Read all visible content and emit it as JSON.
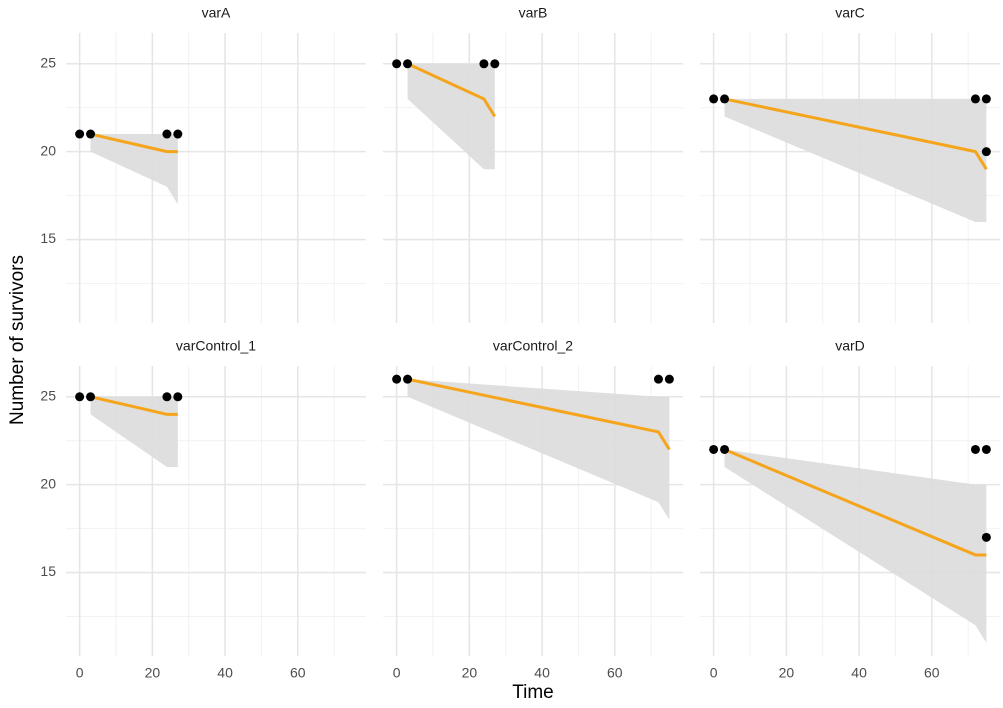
{
  "chart_data": {
    "type": "line",
    "xlabel": "Time",
    "ylabel": "Number of survivors",
    "xlim": [
      -3.75,
      78.75
    ],
    "ylim": [
      10.25,
      26.75
    ],
    "xticks": [
      0,
      20,
      40,
      60
    ],
    "yticks": [
      15,
      20,
      25
    ],
    "x_minor_ticks": [
      10,
      30,
      50,
      70
    ],
    "y_minor_ticks": [
      12.5,
      17.5,
      22.5
    ],
    "grid": true,
    "line_color": "#f5a51c",
    "point_color": "#000000",
    "ribbon_color": "#dcdcdc",
    "panels": [
      {
        "title": "varA",
        "points": {
          "x": [
            0,
            3,
            24,
            27
          ],
          "y": [
            21,
            21,
            21,
            21
          ]
        },
        "fit": {
          "x": [
            3,
            24,
            27
          ],
          "values": [
            21,
            20,
            20
          ],
          "lower": [
            20,
            18,
            17
          ],
          "upper": [
            21,
            21,
            21
          ]
        }
      },
      {
        "title": "varB",
        "points": {
          "x": [
            0,
            3,
            24,
            27
          ],
          "y": [
            25,
            25,
            25,
            25
          ]
        },
        "fit": {
          "x": [
            3,
            24,
            27
          ],
          "values": [
            25,
            23,
            22
          ],
          "lower": [
            23,
            19,
            19
          ],
          "upper": [
            25,
            25,
            25
          ]
        }
      },
      {
        "title": "varC",
        "points": {
          "x": [
            0,
            3,
            72,
            75,
            75
          ],
          "y": [
            23,
            23,
            23,
            23,
            20
          ]
        },
        "fit": {
          "x": [
            3,
            72,
            75
          ],
          "values": [
            23,
            20,
            19
          ],
          "lower": [
            22,
            16,
            16
          ],
          "upper": [
            23,
            23,
            23
          ]
        }
      },
      {
        "title": "varControl_1",
        "points": {
          "x": [
            0,
            3,
            24,
            27
          ],
          "y": [
            25,
            25,
            25,
            25
          ]
        },
        "fit": {
          "x": [
            3,
            24,
            27
          ],
          "values": [
            25,
            24,
            24
          ],
          "lower": [
            24,
            21,
            21
          ],
          "upper": [
            25,
            25,
            25
          ]
        }
      },
      {
        "title": "varControl_2",
        "points": {
          "x": [
            0,
            3,
            72,
            75
          ],
          "y": [
            26,
            26,
            26,
            26
          ]
        },
        "fit": {
          "x": [
            3,
            72,
            75
          ],
          "values": [
            26,
            23,
            22
          ],
          "lower": [
            25,
            19,
            18
          ],
          "upper": [
            26,
            25,
            25
          ]
        }
      },
      {
        "title": "varD",
        "points": {
          "x": [
            0,
            3,
            72,
            75,
            75
          ],
          "y": [
            22,
            22,
            22,
            22,
            17
          ]
        },
        "fit": {
          "x": [
            3,
            72,
            75
          ],
          "values": [
            22,
            16,
            16
          ],
          "lower": [
            21,
            12,
            11
          ],
          "upper": [
            22,
            20,
            20
          ]
        }
      }
    ]
  }
}
